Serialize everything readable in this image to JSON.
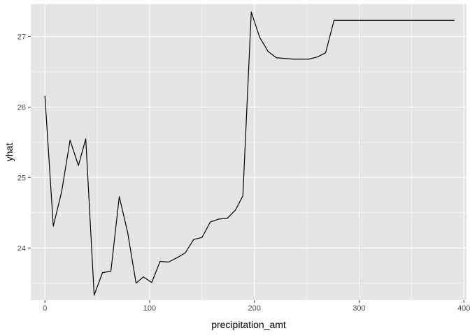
{
  "chart_data": {
    "type": "line",
    "title": "",
    "xlabel": "precipitation_amt",
    "ylabel": "yhat",
    "xlim": [
      -13.5,
      402.5
    ],
    "ylim": [
      23.26,
      27.46
    ],
    "x_ticks": [
      0,
      100,
      200,
      300,
      400
    ],
    "x_tick_labels": [
      "0",
      "100",
      "200",
      "300",
      "400"
    ],
    "y_ticks": [
      24,
      25,
      26,
      27
    ],
    "y_tick_labels": [
      "24",
      "25",
      "26",
      "27"
    ],
    "grid": true,
    "legend": "none",
    "colors": {
      "panel": "#e5e5e5",
      "grid": "#ffffff",
      "line": "#000000"
    },
    "series": [
      {
        "x": [
          0,
          8,
          16,
          24,
          32,
          39,
          47,
          55,
          63,
          71,
          79,
          87,
          94,
          102,
          110,
          118,
          126,
          134,
          142,
          150,
          158,
          166,
          174,
          182,
          189,
          197,
          205,
          213,
          221,
          229,
          237,
          245,
          252,
          260,
          268,
          276,
          284,
          292,
          300,
          308,
          316,
          323,
          331,
          339,
          347,
          355,
          363,
          371,
          379,
          391
        ],
        "y": [
          26.16,
          24.31,
          24.8,
          25.53,
          25.17,
          25.55,
          23.33,
          23.65,
          23.67,
          24.73,
          24.22,
          23.5,
          23.59,
          23.51,
          23.81,
          23.8,
          23.86,
          23.93,
          24.12,
          24.15,
          24.37,
          24.41,
          24.42,
          24.54,
          24.74,
          27.35,
          26.99,
          26.79,
          26.7,
          26.69,
          26.68,
          26.68,
          26.68,
          26.71,
          26.77,
          27.23,
          27.23,
          27.23,
          27.23,
          27.23,
          27.23,
          27.23,
          27.23,
          27.23,
          27.23,
          27.23,
          27.23,
          27.23,
          27.23,
          27.23
        ]
      }
    ]
  }
}
